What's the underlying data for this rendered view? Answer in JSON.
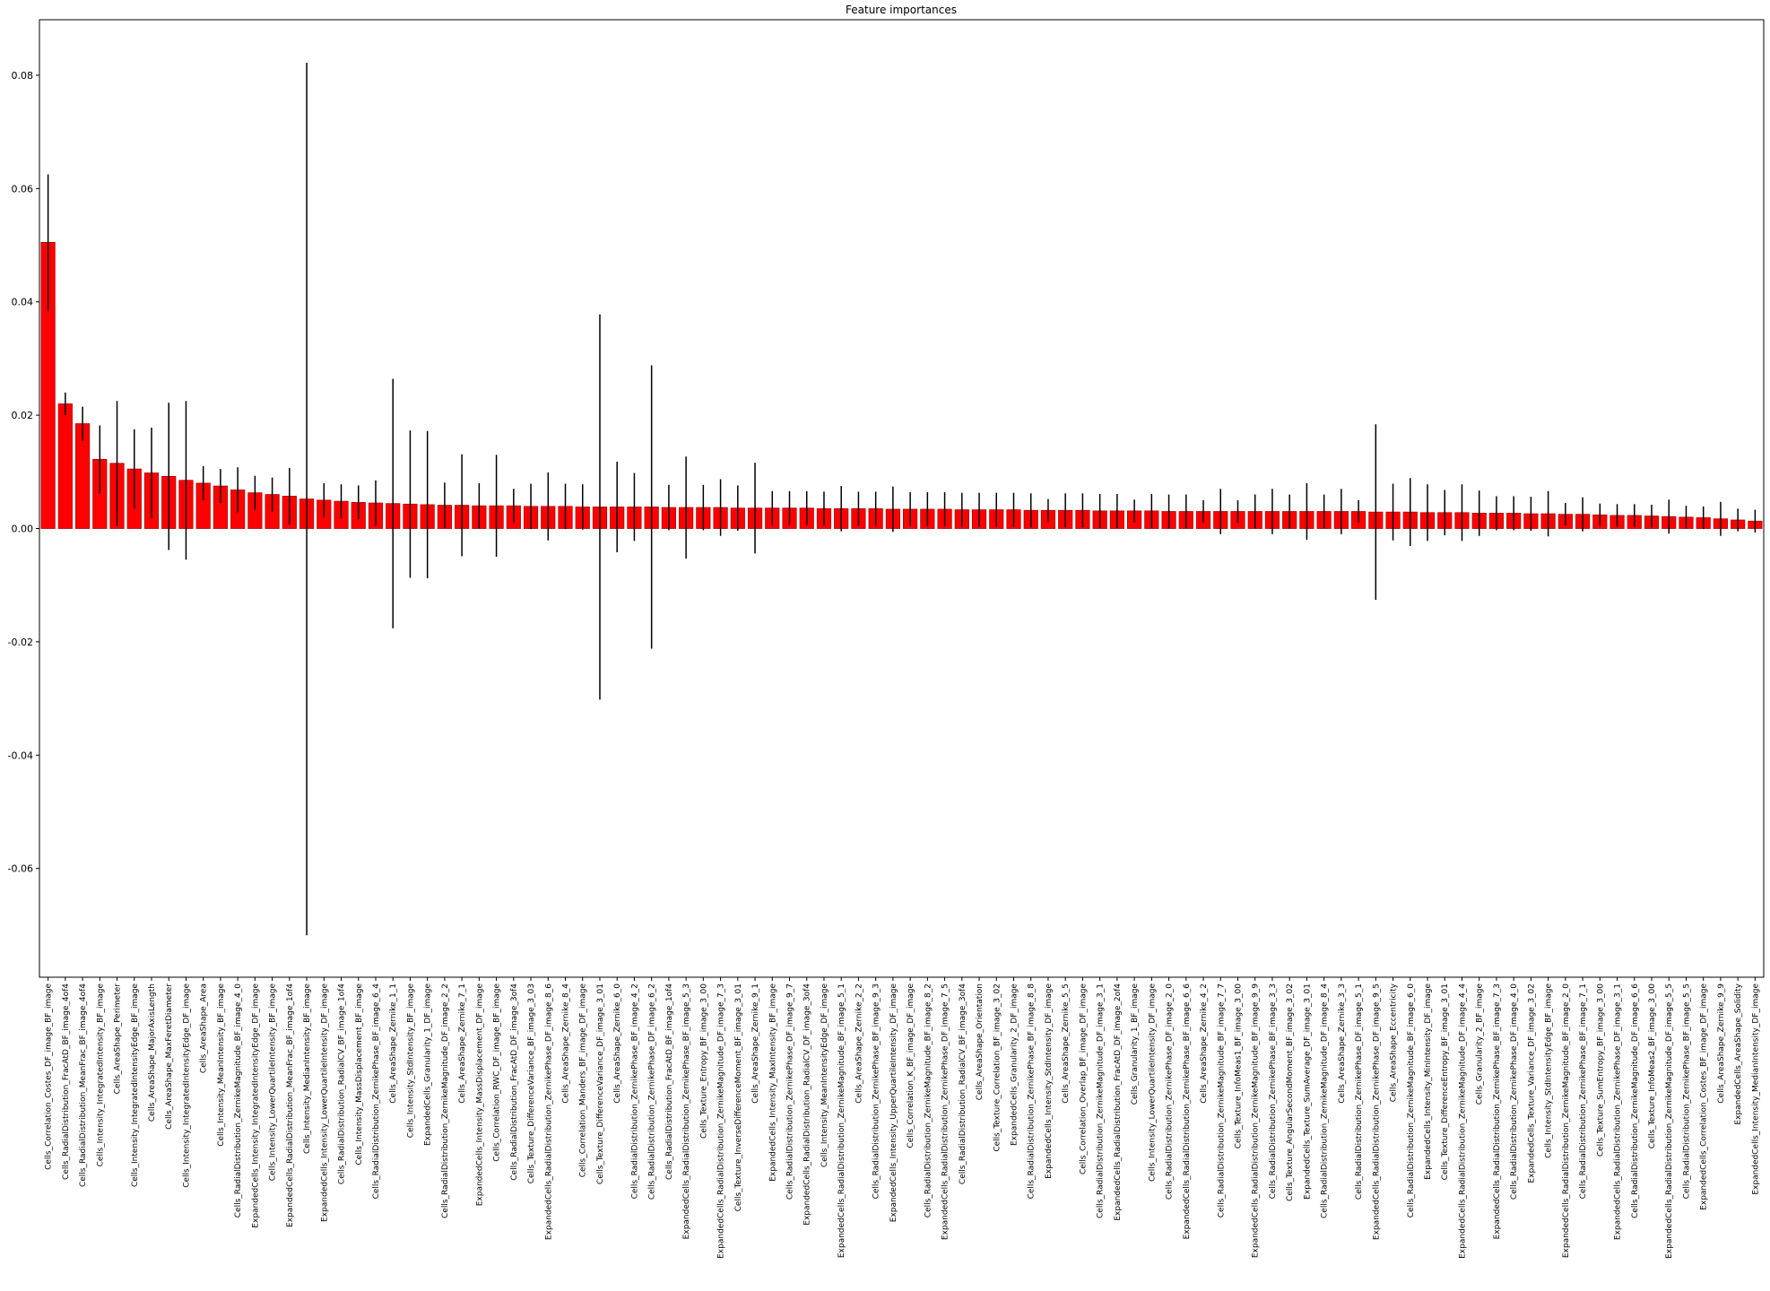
{
  "chart_data": {
    "type": "bar",
    "title": "Feature importances",
    "categories": [
      "Cells_Correlation_Costes_DF_image_BF_image",
      "Cells_RadialDistribution_FracAtD_BF_image_4of4",
      "Cells_RadialDistribution_MeanFrac_BF_image_4of4",
      "Cells_Intensity_IntegratedIntensity_BF_image",
      "Cells_AreaShape_Perimeter",
      "Cells_Intensity_IntegratedIntensityEdge_BF_image",
      "Cells_AreaShape_MajorAxisLength",
      "Cells_AreaShape_MaxFeretDiameter",
      "Cells_Intensity_IntegratedIntensityEdge_DF_image",
      "Cells_AreaShape_Area",
      "Cells_Intensity_MeanIntensity_BF_image",
      "Cells_RadialDistribution_ZernikeMagnitude_BF_image_4_0",
      "ExpandedCells_Intensity_IntegratedIntensityEdge_DF_image",
      "Cells_Intensity_LowerQuartileIntensity_BF_image",
      "ExpandedCells_RadialDistribution_MeanFrac_BF_image_1of4",
      "Cells_Intensity_MedianIntensity_BF_image",
      "ExpandedCells_Intensity_LowerQuartileIntensity_DF_image",
      "Cells_RadialDistribution_RadialCV_BF_image_1of4",
      "Cells_Intensity_MassDisplacement_BF_image",
      "Cells_RadialDistribution_ZernikePhase_BF_image_6_4",
      "Cells_AreaShape_Zernike_1_1",
      "Cells_Intensity_StdIntensity_BF_image",
      "ExpandedCells_Granularity_1_DF_image",
      "Cells_RadialDistribution_ZernikeMagnitude_DF_image_2_2",
      "Cells_AreaShape_Zernike_7_1",
      "ExpandedCells_Intensity_MassDisplacement_DF_image",
      "Cells_Correlation_RWC_DF_image_BF_image",
      "Cells_RadialDistribution_FracAtD_DF_image_3of4",
      "Cells_Texture_DifferenceVariance_BF_image_3_03",
      "ExpandedCells_RadialDistribution_ZernikePhase_DF_image_8_6",
      "Cells_AreaShape_Zernike_8_4",
      "Cells_Correlation_Manders_BF_image_DF_image",
      "Cells_Texture_DifferenceVariance_DF_image_3_01",
      "Cells_AreaShape_Zernike_6_0",
      "Cells_RadialDistribution_ZernikePhase_BF_image_4_2",
      "Cells_RadialDistribution_ZernikePhase_DF_image_6_2",
      "Cells_RadialDistribution_FracAtD_BF_image_1of4",
      "ExpandedCells_RadialDistribution_ZernikePhase_BF_image_5_3",
      "Cells_Texture_Entropy_BF_image_3_00",
      "ExpandedCells_RadialDistribution_ZernikeMagnitude_DF_image_7_3",
      "Cells_Texture_InverseDifferenceMoment_BF_image_3_01",
      "Cells_AreaShape_Zernike_9_1",
      "ExpandedCells_Intensity_MaxIntensity_BF_image",
      "Cells_RadialDistribution_ZernikePhase_DF_image_9_7",
      "ExpandedCells_RadialDistribution_RadialCV_DF_image_3of4",
      "Cells_Intensity_MeanIntensityEdge_DF_image",
      "ExpandedCells_RadialDistribution_ZernikeMagnitude_BF_image_5_1",
      "Cells_AreaShape_Zernike_2_2",
      "Cells_RadialDistribution_ZernikePhase_BF_image_9_3",
      "ExpandedCells_Intensity_UpperQuartileIntensity_DF_image",
      "Cells_Correlation_K_BF_image_DF_image",
      "Cells_RadialDistribution_ZernikeMagnitude_BF_image_8_2",
      "ExpandedCells_RadialDistribution_ZernikePhase_DF_image_7_5",
      "Cells_RadialDistribution_RadialCV_BF_image_3of4",
      "Cells_AreaShape_Orientation",
      "Cells_Texture_Correlation_BF_image_3_02",
      "ExpandedCells_Granularity_2_DF_image",
      "Cells_RadialDistribution_ZernikePhase_BF_image_8_8",
      "ExpandedCells_Intensity_StdIntensity_DF_image",
      "Cells_AreaShape_Zernike_5_5",
      "Cells_Correlation_Overlap_BF_image_DF_image",
      "Cells_RadialDistribution_ZernikeMagnitude_DF_image_3_1",
      "ExpandedCells_RadialDistribution_FracAtD_DF_image_2of4",
      "Cells_Granularity_1_BF_image",
      "Cells_Intensity_LowerQuartileIntensity_DF_image",
      "Cells_RadialDistribution_ZernikePhase_DF_image_2_0",
      "ExpandedCells_RadialDistribution_ZernikePhase_BF_image_6_6",
      "Cells_AreaShape_Zernike_4_2",
      "Cells_RadialDistribution_ZernikeMagnitude_BF_image_7_7",
      "Cells_Texture_InfoMeas1_BF_image_3_00",
      "ExpandedCells_RadialDistribution_ZernikeMagnitude_BF_image_9_9",
      "Cells_RadialDistribution_ZernikePhase_BF_image_3_3",
      "Cells_Texture_AngularSecondMoment_BF_image_3_02",
      "ExpandedCells_Texture_SumAverage_DF_image_3_01",
      "Cells_RadialDistribution_ZernikeMagnitude_DF_image_8_4",
      "Cells_AreaShape_Zernike_3_3",
      "Cells_RadialDistribution_ZernikePhase_DF_image_5_1",
      "ExpandedCells_RadialDistribution_ZernikePhase_DF_image_9_5",
      "Cells_AreaShape_Eccentricity",
      "Cells_RadialDistribution_ZernikeMagnitude_BF_image_6_0",
      "ExpandedCells_Intensity_MinIntensity_DF_image",
      "Cells_Texture_DifferenceEntropy_BF_image_3_01",
      "ExpandedCells_RadialDistribution_ZernikeMagnitude_DF_image_4_4",
      "Cells_Granularity_2_BF_image",
      "ExpandedCells_RadialDistribution_ZernikePhase_BF_image_7_3",
      "Cells_RadialDistribution_ZernikePhase_DF_image_4_0",
      "ExpandedCells_Texture_Variance_DF_image_3_02",
      "Cells_Intensity_StdIntensityEdge_BF_image",
      "ExpandedCells_RadialDistribution_ZernikeMagnitude_BF_image_2_0",
      "Cells_RadialDistribution_ZernikePhase_BF_image_7_1",
      "Cells_Texture_SumEntropy_BF_image_3_00",
      "ExpandedCells_RadialDistribution_ZernikePhase_DF_image_3_1",
      "Cells_RadialDistribution_ZernikeMagnitude_DF_image_6_6",
      "Cells_Texture_InfoMeas2_BF_image_3_00",
      "ExpandedCells_RadialDistribution_ZernikeMagnitude_DF_image_5_5",
      "Cells_RadialDistribution_ZernikePhase_BF_image_5_5",
      "ExpandedCells_Correlation_Costes_BF_image_DF_image",
      "Cells_AreaShape_Zernike_9_9",
      "ExpandedCells_AreaShape_Solidity",
      "ExpandedCells_Intensity_MedianIntensity_DF_image"
    ],
    "values": [
      0.0505,
      0.022,
      0.0185,
      0.0122,
      0.0115,
      0.0105,
      0.0098,
      0.0092,
      0.0085,
      0.008,
      0.0075,
      0.0068,
      0.0063,
      0.006,
      0.0057,
      0.0052,
      0.005,
      0.0048,
      0.0046,
      0.0045,
      0.0044,
      0.0043,
      0.0042,
      0.0041,
      0.0041,
      0.004,
      0.004,
      0.004,
      0.0039,
      0.0039,
      0.0039,
      0.0038,
      0.0038,
      0.0038,
      0.0038,
      0.0038,
      0.0037,
      0.0037,
      0.0037,
      0.0037,
      0.0036,
      0.0036,
      0.0036,
      0.0036,
      0.0036,
      0.0035,
      0.0035,
      0.0035,
      0.0035,
      0.0034,
      0.0034,
      0.0034,
      0.0034,
      0.0033,
      0.0033,
      0.0033,
      0.0033,
      0.0032,
      0.0032,
      0.0032,
      0.0032,
      0.0031,
      0.0031,
      0.0031,
      0.0031,
      0.003,
      0.003,
      0.003,
      0.003,
      0.003,
      0.003,
      0.003,
      0.003,
      0.003,
      0.003,
      0.003,
      0.003,
      0.0029,
      0.0029,
      0.0029,
      0.0028,
      0.0028,
      0.0028,
      0.0027,
      0.0027,
      0.0027,
      0.0026,
      0.0026,
      0.0025,
      0.0025,
      0.0024,
      0.0023,
      0.0023,
      0.0022,
      0.0021,
      0.002,
      0.0019,
      0.0017,
      0.0015,
      0.0013
    ],
    "errors": [
      0.012,
      0.002,
      0.003,
      0.006,
      0.011,
      0.007,
      0.008,
      0.013,
      0.014,
      0.003,
      0.003,
      0.004,
      0.003,
      0.003,
      0.005,
      0.077,
      0.003,
      0.003,
      0.003,
      0.004,
      0.022,
      0.013,
      0.013,
      0.004,
      0.009,
      0.004,
      0.009,
      0.003,
      0.004,
      0.006,
      0.004,
      0.004,
      0.034,
      0.008,
      0.006,
      0.025,
      0.004,
      0.009,
      0.004,
      0.005,
      0.004,
      0.008,
      0.003,
      0.003,
      0.003,
      0.003,
      0.004,
      0.003,
      0.003,
      0.004,
      0.003,
      0.003,
      0.003,
      0.003,
      0.003,
      0.003,
      0.003,
      0.003,
      0.002,
      0.003,
      0.003,
      0.003,
      0.003,
      0.002,
      0.003,
      0.003,
      0.003,
      0.002,
      0.004,
      0.002,
      0.003,
      0.004,
      0.003,
      0.005,
      0.003,
      0.004,
      0.002,
      0.0155,
      0.005,
      0.006,
      0.005,
      0.004,
      0.005,
      0.004,
      0.003,
      0.003,
      0.003,
      0.004,
      0.002,
      0.003,
      0.002,
      0.002,
      0.002,
      0.002,
      0.003,
      0.002,
      0.002,
      0.003,
      0.002,
      0.002
    ],
    "color": "#ff0000",
    "edge_color": "#b00000",
    "error_color": "#000000",
    "ylim": [
      -0.0792,
      0.0898
    ],
    "yticks": [
      -0.06,
      -0.04,
      -0.02,
      {
        "value": 0,
        "label": "0.00"
      },
      0.02,
      0.04,
      0.06,
      0.08
    ]
  }
}
